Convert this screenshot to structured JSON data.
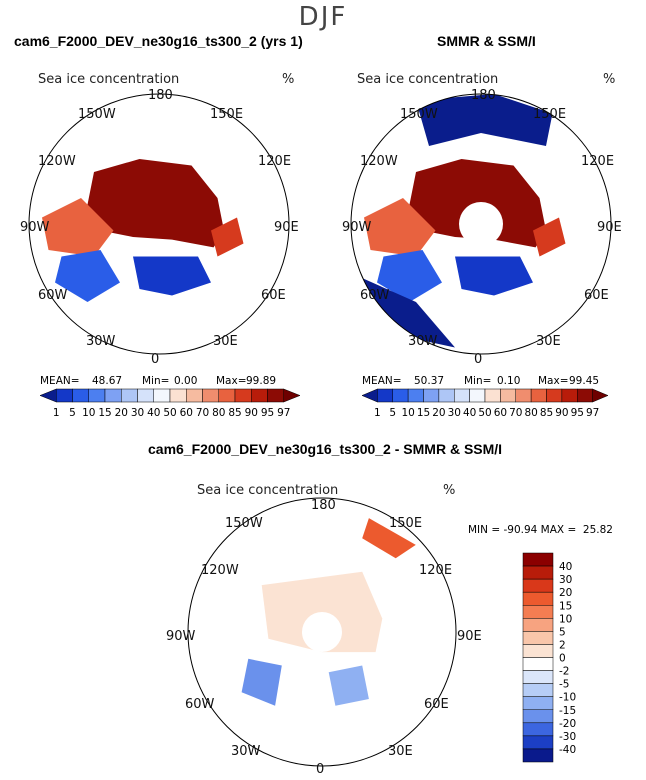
{
  "header": {
    "season": "DJF"
  },
  "panels": [
    {
      "title": "cam6_F2000_DEV_ne30g16_ts300_2 (yrs 1)",
      "subtitle": "Sea ice concentration",
      "units": "%",
      "lon_labels": {
        "n": "180",
        "nw": "150W",
        "ne": "150E",
        "wnw": "120W",
        "ene": "120E",
        "w": "90W",
        "e": "90E",
        "wsw": "60W",
        "ese": "60E",
        "sw": "30W",
        "se": "30E",
        "s": "0"
      },
      "stats": {
        "mean_label": "MEAN=",
        "mean": "48.67",
        "min_label": "Min=",
        "min": "0.00",
        "max_label": "Max=",
        "max": "99.89"
      }
    },
    {
      "title": "SMMR & SSM/I",
      "subtitle": "Sea ice concentration",
      "units": "%",
      "lon_labels": {
        "n": "180",
        "nw": "150W",
        "ne": "150E",
        "wnw": "120W",
        "ene": "120E",
        "w": "90W",
        "e": "90E",
        "wsw": "60W",
        "ese": "60E",
        "sw": "30W",
        "se": "30E",
        "s": "0"
      },
      "stats": {
        "mean_label": "MEAN=",
        "mean": "50.37",
        "min_label": "Min=",
        "min": "0.10",
        "max_label": "Max=",
        "max": "99.45"
      }
    },
    {
      "title": "cam6_F2000_DEV_ne30g16_ts300_2 - SMMR & SSM/I",
      "subtitle": "Sea ice concentration",
      "units": "%",
      "lon_labels": {
        "n": "180",
        "nw": "150W",
        "ne": "150E",
        "wnw": "120W",
        "ene": "120E",
        "w": "90W",
        "e": "90E",
        "wsw": "60W",
        "ese": "60E",
        "sw": "30W",
        "se": "30E",
        "s": "0"
      },
      "stats": {
        "text": "MIN = -90.94 MAX =  25.82"
      }
    }
  ],
  "chart_data": [
    {
      "type": "heatmap",
      "projection": "north polar stereographic",
      "title": "cam6_F2000_DEV_ne30g16_ts300_2 (yrs 1)",
      "variable": "Sea ice concentration",
      "units": "%",
      "mean": 48.67,
      "min": 0.0,
      "max": 99.89,
      "colorbar": {
        "ticks": [
          "1",
          "5",
          "10",
          "15",
          "20",
          "30",
          "40",
          "50",
          "60",
          "70",
          "80",
          "85",
          "90",
          "95",
          "97"
        ],
        "colors": [
          "#0a1d8c",
          "#1438c8",
          "#2a5de8",
          "#4c7ff0",
          "#7ea1f3",
          "#aec6f6",
          "#d5e2fa",
          "#f3f7fd",
          "#fbe1d2",
          "#f6bba0",
          "#f08d6e",
          "#e8623f",
          "#d63a1e",
          "#b81c0a",
          "#8c0b05",
          "#6e0000"
        ]
      }
    },
    {
      "type": "heatmap",
      "projection": "north polar stereographic",
      "title": "SMMR & SSM/I",
      "variable": "Sea ice concentration",
      "units": "%",
      "mean": 50.37,
      "min": 0.1,
      "max": 99.45,
      "colorbar": {
        "ticks": [
          "1",
          "5",
          "10",
          "15",
          "20",
          "30",
          "40",
          "50",
          "60",
          "70",
          "80",
          "85",
          "90",
          "95",
          "97"
        ],
        "colors": [
          "#0a1d8c",
          "#1438c8",
          "#2a5de8",
          "#4c7ff0",
          "#7ea1f3",
          "#aec6f6",
          "#d5e2fa",
          "#f3f7fd",
          "#fbe1d2",
          "#f6bba0",
          "#f08d6e",
          "#e8623f",
          "#d63a1e",
          "#b81c0a",
          "#8c0b05",
          "#6e0000"
        ]
      }
    },
    {
      "type": "heatmap",
      "projection": "north polar stereographic",
      "title": "cam6_F2000_DEV_ne30g16_ts300_2 - SMMR & SSM/I",
      "variable": "Sea ice concentration difference",
      "units": "%",
      "min": -90.94,
      "max": 25.82,
      "colorbar": {
        "ticks": [
          "40",
          "30",
          "20",
          "15",
          "10",
          "5",
          "2",
          "0",
          "-2",
          "-5",
          "-10",
          "-15",
          "-20",
          "-30",
          "-40"
        ],
        "colors": [
          "#8b0000",
          "#b81c0a",
          "#d9381a",
          "#ec5a2e",
          "#f47d52",
          "#f7a380",
          "#f9c6aa",
          "#fbe3d3",
          "#ffffff",
          "#dbe6fa",
          "#b6cdf6",
          "#8fb0f2",
          "#6a91ec",
          "#3c66e0",
          "#1c3fc4",
          "#0a1a8c"
        ]
      }
    }
  ]
}
